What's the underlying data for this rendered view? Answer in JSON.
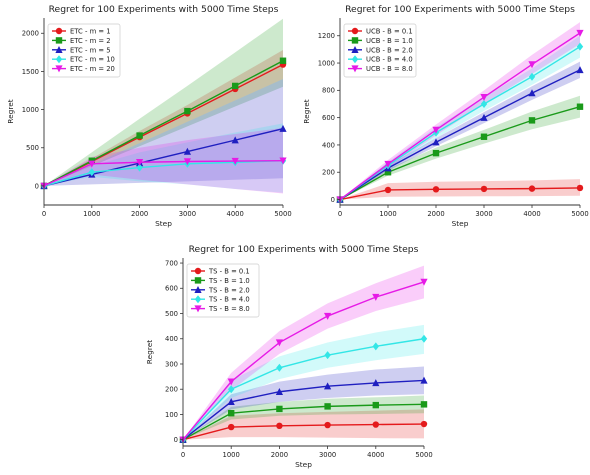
{
  "chart_data": [
    {
      "type": "line",
      "title": "Regret for 100 Experiments with 5000 Time Steps",
      "xlabel": "Step",
      "ylabel": "Regret",
      "xlim": [
        0,
        5000
      ],
      "ylim": [
        -250,
        2200
      ],
      "xticks": [
        0,
        1000,
        2000,
        3000,
        4000,
        5000
      ],
      "yticks": [
        0,
        500,
        1000,
        1500,
        2000
      ],
      "grid": false,
      "legend_position": "top-left",
      "x": [
        0,
        1000,
        2000,
        3000,
        4000,
        5000
      ],
      "series": [
        {
          "name": "ETC - m = 1",
          "color": "#e41a1c",
          "marker": "circle",
          "values": [
            0,
            320,
            640,
            950,
            1270,
            1590
          ],
          "band_low": [
            0,
            280,
            560,
            840,
            1120,
            1400
          ],
          "band_high": [
            0,
            360,
            720,
            1060,
            1420,
            1780
          ]
        },
        {
          "name": "ETC - m = 2",
          "color": "#1a9a1a",
          "marker": "square",
          "values": [
            0,
            330,
            660,
            980,
            1310,
            1640
          ],
          "band_low": [
            0,
            260,
            520,
            780,
            1040,
            1300
          ],
          "band_high": [
            0,
            440,
            880,
            1310,
            1750,
            2190
          ]
        },
        {
          "name": "ETC - m = 5",
          "color": "#1f1fc0",
          "marker": "triangle-up",
          "values": [
            0,
            150,
            300,
            450,
            600,
            750
          ],
          "band_low": [
            0,
            20,
            40,
            60,
            80,
            100
          ],
          "band_high": [
            0,
            280,
            560,
            840,
            1120,
            1400
          ]
        },
        {
          "name": "ETC - m = 10",
          "color": "#33e6e6",
          "marker": "diamond",
          "values": [
            0,
            180,
            240,
            290,
            310,
            330
          ],
          "band_low": [
            0,
            120,
            60,
            20,
            -40,
            -90
          ],
          "band_high": [
            0,
            260,
            440,
            570,
            700,
            820
          ]
        },
        {
          "name": "ETC - m = 20",
          "color": "#e61ae6",
          "marker": "triangle-down",
          "values": [
            0,
            290,
            310,
            320,
            325,
            330
          ],
          "band_low": [
            0,
            150,
            80,
            20,
            -40,
            -100
          ],
          "band_high": [
            0,
            380,
            500,
            600,
            680,
            760
          ]
        }
      ]
    },
    {
      "type": "line",
      "title": "Regret for 100 Experiments with 5000 Time Steps",
      "xlabel": "Step",
      "ylabel": "Regret",
      "xlim": [
        0,
        5000
      ],
      "ylim": [
        -40,
        1330
      ],
      "xticks": [
        0,
        1000,
        2000,
        3000,
        4000,
        5000
      ],
      "yticks": [
        0,
        200,
        400,
        600,
        800,
        1000,
        1200
      ],
      "grid": false,
      "legend_position": "top-left",
      "x": [
        0,
        1000,
        2000,
        3000,
        4000,
        5000
      ],
      "series": [
        {
          "name": "UCB - B = 0.1",
          "color": "#e41a1c",
          "marker": "circle",
          "values": [
            0,
            70,
            75,
            78,
            80,
            85
          ],
          "band_low": [
            0,
            20,
            22,
            24,
            25,
            28
          ],
          "band_high": [
            0,
            120,
            130,
            135,
            140,
            150
          ]
        },
        {
          "name": "UCB - B = 1.0",
          "color": "#1a9a1a",
          "marker": "square",
          "values": [
            0,
            200,
            340,
            460,
            580,
            680
          ],
          "band_low": [
            0,
            175,
            300,
            410,
            515,
            600
          ],
          "band_high": [
            0,
            225,
            380,
            510,
            645,
            760
          ]
        },
        {
          "name": "UCB - B = 2.0",
          "color": "#1f1fc0",
          "marker": "triangle-up",
          "values": [
            0,
            230,
            420,
            600,
            780,
            950
          ],
          "band_low": [
            0,
            210,
            390,
            560,
            730,
            890
          ],
          "band_high": [
            0,
            250,
            450,
            640,
            830,
            1010
          ]
        },
        {
          "name": "UCB - B = 4.0",
          "color": "#33e6e6",
          "marker": "diamond",
          "values": [
            0,
            250,
            490,
            700,
            900,
            1120
          ],
          "band_low": [
            0,
            225,
            450,
            650,
            840,
            1040
          ],
          "band_high": [
            0,
            275,
            530,
            750,
            960,
            1200
          ]
        },
        {
          "name": "UCB - B = 8.0",
          "color": "#e61ae6",
          "marker": "triangle-down",
          "values": [
            0,
            260,
            510,
            750,
            990,
            1220
          ],
          "band_low": [
            0,
            230,
            470,
            700,
            920,
            1140
          ],
          "band_high": [
            0,
            290,
            550,
            800,
            1060,
            1300
          ]
        }
      ]
    },
    {
      "type": "line",
      "title": "Regret for 100 Experiments with 5000 Time Steps",
      "xlabel": "Step",
      "ylabel": "Regret",
      "xlim": [
        0,
        5000
      ],
      "ylim": [
        -25,
        720
      ],
      "xticks": [
        0,
        1000,
        2000,
        3000,
        4000,
        5000
      ],
      "yticks": [
        0,
        100,
        200,
        300,
        400,
        500,
        600,
        700
      ],
      "grid": false,
      "legend_position": "top-left",
      "x": [
        0,
        1000,
        2000,
        3000,
        4000,
        5000
      ],
      "series": [
        {
          "name": "TS - B = 0.1",
          "color": "#e41a1c",
          "marker": "circle",
          "values": [
            0,
            50,
            55,
            58,
            60,
            62
          ],
          "band_low": [
            0,
            10,
            10,
            8,
            6,
            5
          ],
          "band_high": [
            0,
            95,
            105,
            110,
            115,
            120
          ]
        },
        {
          "name": "TS - B = 1.0",
          "color": "#1a9a1a",
          "marker": "square",
          "values": [
            0,
            105,
            122,
            132,
            137,
            140
          ],
          "band_low": [
            0,
            80,
            95,
            100,
            102,
            105
          ],
          "band_high": [
            0,
            130,
            150,
            162,
            168,
            175
          ]
        },
        {
          "name": "TS - B = 2.0",
          "color": "#1f1fc0",
          "marker": "triangle-up",
          "values": [
            0,
            150,
            190,
            212,
            225,
            235
          ],
          "band_low": [
            0,
            120,
            150,
            165,
            175,
            180
          ],
          "band_high": [
            0,
            180,
            230,
            258,
            278,
            290
          ]
        },
        {
          "name": "TS - B = 4.0",
          "color": "#33e6e6",
          "marker": "diamond",
          "values": [
            0,
            200,
            285,
            335,
            370,
            400
          ],
          "band_low": [
            0,
            165,
            240,
            285,
            315,
            340
          ],
          "band_high": [
            0,
            235,
            330,
            385,
            425,
            455
          ]
        },
        {
          "name": "TS - B = 8.0",
          "color": "#e61ae6",
          "marker": "triangle-down",
          "values": [
            0,
            230,
            385,
            490,
            565,
            625
          ],
          "band_low": [
            0,
            195,
            340,
            440,
            510,
            560
          ],
          "band_high": [
            0,
            265,
            430,
            540,
            620,
            690
          ]
        }
      ]
    }
  ]
}
